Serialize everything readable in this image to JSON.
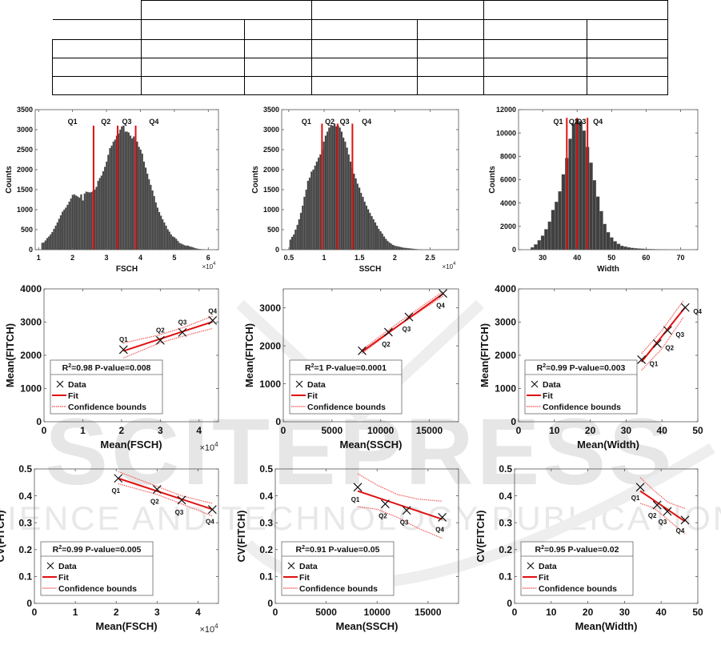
{
  "table": {
    "rows": [
      [
        "",
        "",
        "",
        ""
      ],
      [
        "",
        "",
        "",
        "",
        "",
        "",
        ""
      ],
      [
        "",
        "",
        "",
        "",
        "",
        "",
        ""
      ],
      [
        "",
        "",
        "",
        "",
        "",
        "",
        ""
      ],
      [
        "",
        "",
        "",
        "",
        "",
        "",
        ""
      ]
    ]
  },
  "watermark": {
    "main": "SCITEPRESS",
    "sub": "SCIENCE AND TECHNOLOGY PUBLICATIONS"
  },
  "colors": {
    "bar": "#404040",
    "quartile_line": "#e01010",
    "fit": "#e01010",
    "confidence": "#f06060",
    "axis": "#555555"
  },
  "chart_data": [
    {
      "id": "hist-fsch",
      "type": "bar",
      "subtype": "histogram",
      "xlabel": "FSCH",
      "ylabel": "Counts",
      "x_exponent_label": "×10",
      "x_exponent_power": "4",
      "xlim": [
        0.9,
        6.3
      ],
      "ylim": [
        0,
        3500
      ],
      "xticks": [
        1,
        2,
        3,
        4,
        5,
        6
      ],
      "yticks": [
        0,
        500,
        1000,
        1500,
        2000,
        2500,
        3000,
        3500
      ],
      "bin_start": 1.08,
      "bin_width": 0.05,
      "counts": [
        170,
        180,
        230,
        290,
        330,
        380,
        440,
        520,
        600,
        680,
        770,
        860,
        950,
        1000,
        1050,
        1120,
        1200,
        1280,
        1370,
        1380,
        1350,
        1330,
        1300,
        1380,
        1230,
        1400,
        1450,
        1440,
        1430,
        1440,
        1460,
        1500,
        1570,
        1720,
        1790,
        1850,
        1960,
        2070,
        2200,
        2370,
        2540,
        2600,
        2700,
        2750,
        2850,
        2900,
        3000,
        3080,
        3100,
        2950,
        2950,
        2930,
        2850,
        2780,
        2830,
        2750,
        2700,
        2570,
        2500,
        2400,
        2200,
        2050,
        1900,
        1760,
        1620,
        1480,
        1340,
        1180,
        1050,
        940,
        850,
        760,
        680,
        600,
        510,
        450,
        380,
        330,
        310,
        270,
        220,
        170,
        150,
        130,
        110,
        100,
        100,
        80,
        70,
        60,
        40,
        30,
        20,
        15,
        10,
        8
      ],
      "quartile_lines": [
        2.62,
        3.33,
        3.86
      ],
      "quartile_line_top": 3100,
      "quartile_labels": [
        {
          "text": "Q1",
          "x": 2.0
        },
        {
          "text": "Q2",
          "x": 2.98
        },
        {
          "text": "Q3",
          "x": 3.6
        },
        {
          "text": "Q4",
          "x": 4.4
        }
      ]
    },
    {
      "id": "hist-ssch",
      "type": "bar",
      "subtype": "histogram",
      "xlabel": "SSCH",
      "ylabel": "Counts",
      "x_exponent_label": "×10",
      "x_exponent_power": "4",
      "xlim": [
        0.4,
        2.9
      ],
      "ylim": [
        0,
        3500
      ],
      "xticks": [
        0.5,
        1,
        1.5,
        2,
        2.5
      ],
      "xticklabels": [
        "0.5",
        "1",
        "1.5",
        "2",
        "2.5"
      ],
      "yticks": [
        0,
        500,
        1000,
        1500,
        2000,
        2500,
        3000,
        3500
      ],
      "bin_start": 0.51,
      "bin_width": 0.025,
      "counts": [
        250,
        320,
        380,
        500,
        620,
        760,
        920,
        1100,
        1320,
        1500,
        1720,
        1800,
        1950,
        2000,
        2100,
        2200,
        2300,
        2380,
        2500,
        2700,
        2850,
        2950,
        3050,
        3120,
        3100,
        3150,
        3080,
        3100,
        3050,
        2950,
        2800,
        2700,
        2550,
        2380,
        2200,
        2050,
        1900,
        1780,
        1650,
        1550,
        1420,
        1320,
        1200,
        1100,
        1010,
        920,
        840,
        760,
        680,
        600,
        520,
        460,
        400,
        330,
        270,
        220,
        180,
        150,
        120,
        100,
        90,
        80,
        70,
        60,
        50,
        45,
        40,
        35,
        30,
        25,
        20,
        15,
        10,
        8,
        5
      ],
      "quartile_lines": [
        0.97,
        1.19,
        1.4
      ],
      "quartile_line_top": 3150,
      "quartile_labels": [
        {
          "text": "Q1",
          "x": 0.75
        },
        {
          "text": "Q2",
          "x": 1.08
        },
        {
          "text": "Q3",
          "x": 1.29
        },
        {
          "text": "Q4",
          "x": 1.6
        }
      ]
    },
    {
      "id": "hist-width",
      "type": "bar",
      "subtype": "histogram",
      "xlabel": "Width",
      "ylabel": "Counts",
      "xlim": [
        23,
        75
      ],
      "ylim": [
        0,
        12000
      ],
      "xticks": [
        30,
        40,
        50,
        60,
        70
      ],
      "yticks": [
        0,
        2000,
        4000,
        6000,
        8000,
        10000,
        12000
      ],
      "bin_start": 26.5,
      "bin_width": 1,
      "counts": [
        200,
        450,
        800,
        1200,
        1750,
        2400,
        3400,
        4100,
        5000,
        6450,
        7850,
        9500,
        10800,
        11200,
        11000,
        10200,
        8800,
        7450,
        5950,
        4550,
        3300,
        2200,
        1500,
        1050,
        720,
        500,
        330,
        260,
        200,
        150,
        120,
        100,
        80,
        60,
        50,
        40,
        30,
        20,
        10,
        5
      ],
      "quartile_lines": [
        37,
        40,
        43
      ],
      "quartile_line_top": 11300,
      "quartile_labels": [
        {
          "text": "Q1",
          "x": 34.5
        },
        {
          "text": "Q2",
          "x": 39
        },
        {
          "text": "Q3",
          "x": 41.2
        },
        {
          "text": "Q4",
          "x": 46
        }
      ]
    },
    {
      "id": "mean-fsch",
      "type": "scatter",
      "xlabel": "Mean(FSCH)",
      "ylabel": "Mean(FITCH)",
      "x_exponent_label": "×10",
      "x_exponent_power": "4",
      "xlim": [
        0,
        4.5
      ],
      "ylim": [
        0,
        4000
      ],
      "xticks": [
        0,
        1,
        2,
        3,
        4
      ],
      "yticks": [
        0,
        1000,
        2000,
        3000,
        4000
      ],
      "points": [
        {
          "label": "Q1",
          "x": 2.05,
          "y": 2170
        },
        {
          "label": "Q2",
          "x": 3.0,
          "y": 2450
        },
        {
          "label": "Q3",
          "x": 3.57,
          "y": 2690
        },
        {
          "label": "Q4",
          "x": 4.35,
          "y": 3050
        }
      ],
      "label_offsets": "above",
      "fit": {
        "x": [
          2.05,
          4.35
        ],
        "y": [
          2130,
          3010
        ]
      },
      "ci_upper": {
        "x": [
          2.05,
          3.0,
          3.6,
          4.35
        ],
        "y": [
          2370,
          2620,
          2840,
          3180
        ]
      },
      "ci_lower": {
        "x": [
          2.05,
          3.0,
          3.6,
          4.35
        ],
        "y": [
          1920,
          2380,
          2580,
          2810
        ]
      },
      "legend": {
        "title_prefix": "R",
        "title_sup": "2",
        "title_rest": "=0.98 P-value=0.008",
        "entries": [
          "Data",
          "Fit",
          "Confidence bounds"
        ],
        "position": "bottom-left"
      }
    },
    {
      "id": "mean-ssch",
      "type": "scatter",
      "xlabel": "Mean(SSCH)",
      "ylabel": "Mean(FITCH)",
      "xlim": [
        0,
        18000
      ],
      "ylim": [
        0,
        3500
      ],
      "xticks": [
        0,
        5000,
        10000,
        15000
      ],
      "yticks": [
        0,
        1000,
        2000,
        3000
      ],
      "points": [
        {
          "label": "Q1",
          "x": 8100,
          "y": 1870
        },
        {
          "label": "Q2",
          "x": 10800,
          "y": 2360
        },
        {
          "label": "Q3",
          "x": 12900,
          "y": 2760
        },
        {
          "label": "Q4",
          "x": 16400,
          "y": 3380
        }
      ],
      "label_offsets": "below",
      "fit": {
        "x": [
          8100,
          16400
        ],
        "y": [
          1850,
          3370
        ]
      },
      "ci_upper": {
        "x": [
          8100,
          12000,
          16400
        ],
        "y": [
          1900,
          2640,
          3430
        ]
      },
      "ci_lower": {
        "x": [
          8100,
          12000,
          16400
        ],
        "y": [
          1800,
          2560,
          3310
        ]
      },
      "legend": {
        "title_prefix": "R",
        "title_sup": "2",
        "title_rest": "=1 P-value=0.0001",
        "entries": [
          "Data",
          "Fit",
          "Confidence bounds"
        ],
        "position": "bottom-left"
      }
    },
    {
      "id": "mean-width",
      "type": "scatter",
      "xlabel": "Mean(Width)",
      "ylabel": "Mean(FITCH)",
      "xlim": [
        0,
        50
      ],
      "ylim": [
        0,
        4000
      ],
      "xticks": [
        0,
        10,
        20,
        30,
        40,
        50
      ],
      "yticks": [
        0,
        1000,
        2000,
        3000,
        4000
      ],
      "points": [
        {
          "label": "Q1",
          "x": 34.3,
          "y": 1870
        },
        {
          "label": "Q2",
          "x": 38.7,
          "y": 2350
        },
        {
          "label": "Q3",
          "x": 41.6,
          "y": 2750
        },
        {
          "label": "Q4",
          "x": 46.5,
          "y": 3440
        }
      ],
      "label_offsets": "right-below",
      "fit": {
        "x": [
          34.3,
          46.5
        ],
        "y": [
          1800,
          3450
        ]
      },
      "ci_upper": {
        "x": [
          34.3,
          40,
          46
        ],
        "y": [
          2050,
          2750,
          3650
        ]
      },
      "ci_lower": {
        "x": [
          34.3,
          40,
          46
        ],
        "y": [
          1550,
          2200,
          3150
        ]
      },
      "legend": {
        "title_prefix": "R",
        "title_sup": "2",
        "title_rest": "=0.99 P-value=0.003",
        "entries": [
          "Data",
          "Fit",
          "Confidence bounds"
        ],
        "position": "bottom-left"
      }
    },
    {
      "id": "cv-fsch",
      "type": "scatter",
      "xlabel": "Mean(FSCH)",
      "ylabel": "CV(FITCH)",
      "x_exponent_label": "×10",
      "x_exponent_power": "4",
      "xlim": [
        0,
        4.5
      ],
      "ylim": [
        0,
        0.5
      ],
      "xticks": [
        0,
        1,
        2,
        3,
        4
      ],
      "yticks": [
        0,
        0.1,
        0.2,
        0.3,
        0.4,
        0.5
      ],
      "points": [
        {
          "label": "Q1",
          "x": 2.05,
          "y": 0.465
        },
        {
          "label": "Q2",
          "x": 3.0,
          "y": 0.424
        },
        {
          "label": "Q3",
          "x": 3.6,
          "y": 0.384
        },
        {
          "label": "Q4",
          "x": 4.35,
          "y": 0.349
        }
      ],
      "label_offsets": "below",
      "fit": {
        "x": [
          2.05,
          4.35
        ],
        "y": [
          0.465,
          0.35
        ]
      },
      "ci_upper": {
        "x": [
          2.05,
          3.0,
          3.6,
          4.35
        ],
        "y": [
          0.49,
          0.435,
          0.4,
          0.372
        ]
      },
      "ci_lower": {
        "x": [
          2.05,
          3.0,
          3.6,
          4.35
        ],
        "y": [
          0.445,
          0.405,
          0.37,
          0.325
        ]
      },
      "legend": {
        "title_prefix": "R",
        "title_sup": "2",
        "title_rest": "=0.99 P-value=0.005",
        "entries": [
          "Data",
          "Fit",
          "Confidence bounds"
        ],
        "position": "bottom-left"
      }
    },
    {
      "id": "cv-ssch",
      "type": "scatter",
      "xlabel": "Mean(SSCH)",
      "ylabel": "CV(FITCH)",
      "xlim": [
        0,
        18000
      ],
      "ylim": [
        0,
        0.5
      ],
      "xticks": [
        0,
        5000,
        10000,
        15000
      ],
      "yticks": [
        0,
        0.1,
        0.2,
        0.3,
        0.4,
        0.5
      ],
      "points": [
        {
          "label": "Q1",
          "x": 8100,
          "y": 0.432
        },
        {
          "label": "Q2",
          "x": 10800,
          "y": 0.37
        },
        {
          "label": "Q3",
          "x": 12900,
          "y": 0.346
        },
        {
          "label": "Q4",
          "x": 16400,
          "y": 0.32
        }
      ],
      "label_offsets": "below",
      "fit": {
        "x": [
          8100,
          16400
        ],
        "y": [
          0.418,
          0.313
        ]
      },
      "ci_upper": {
        "x": [
          8100,
          10000,
          12000,
          14000,
          16400
        ],
        "y": [
          0.482,
          0.44,
          0.405,
          0.388,
          0.38
        ]
      },
      "ci_lower": {
        "x": [
          8100,
          10000,
          12000,
          14000,
          16400
        ],
        "y": [
          0.36,
          0.35,
          0.32,
          0.28,
          0.242
        ]
      },
      "legend": {
        "title_prefix": "R",
        "title_sup": "2",
        "title_rest": "=0.91 P-value=0.05",
        "entries": [
          "Data",
          "Fit",
          "Confidence bounds"
        ],
        "position": "bottom-left"
      }
    },
    {
      "id": "cv-width",
      "type": "scatter",
      "xlabel": "Mean(Width)",
      "ylabel": "CV(FITCH)",
      "xlim": [
        0,
        50
      ],
      "ylim": [
        0,
        0.5
      ],
      "xticks": [
        0,
        10,
        20,
        30,
        40,
        50
      ],
      "yticks": [
        0,
        0.1,
        0.2,
        0.3,
        0.4,
        0.5
      ],
      "points": [
        {
          "label": "Q1",
          "x": 34.3,
          "y": 0.432
        },
        {
          "label": "Q2",
          "x": 38.9,
          "y": 0.366
        },
        {
          "label": "Q3",
          "x": 41.7,
          "y": 0.342
        },
        {
          "label": "Q4",
          "x": 46.5,
          "y": 0.31
        }
      ],
      "label_offsets": "below-left",
      "fit": {
        "x": [
          34.3,
          46.5
        ],
        "y": [
          0.418,
          0.305
        ]
      },
      "ci_upper": {
        "x": [
          34.3,
          38,
          42,
          46.5
        ],
        "y": [
          0.468,
          0.42,
          0.375,
          0.353
        ]
      },
      "ci_lower": {
        "x": [
          34.3,
          38,
          42,
          46.5
        ],
        "y": [
          0.372,
          0.355,
          0.31,
          0.258
        ]
      },
      "legend": {
        "title_prefix": "R",
        "title_sup": "2",
        "title_rest": "=0.95 P-value=0.02",
        "entries": [
          "Data",
          "Fit",
          "Confidence bounds"
        ],
        "position": "bottom-left"
      }
    }
  ]
}
